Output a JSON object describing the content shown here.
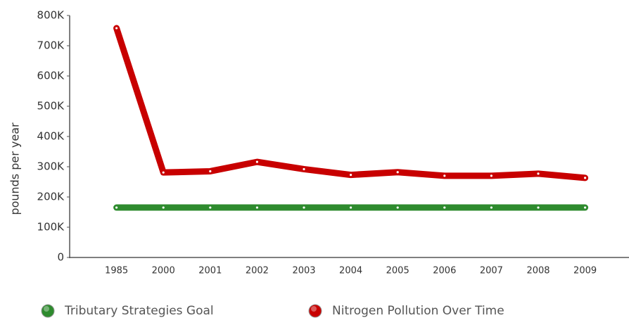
{
  "chart_data": {
    "type": "line",
    "y_label": "pounds per year",
    "categories": [
      "1985",
      "2000",
      "2001",
      "2002",
      "2003",
      "2004",
      "2005",
      "2006",
      "2007",
      "2008",
      "2009"
    ],
    "series": [
      {
        "name": "Tributary Strategies Goal",
        "color": "#2e8b2e",
        "values": [
          165000,
          165000,
          165000,
          165000,
          165000,
          165000,
          165000,
          165000,
          165000,
          165000,
          165000
        ]
      },
      {
        "name": "Nitrogen Pollution Over Time",
        "color": "#c80000",
        "values": [
          758000,
          281000,
          285000,
          316000,
          292000,
          273000,
          282000,
          270000,
          270000,
          277000,
          263000
        ]
      }
    ],
    "ylim": [
      0,
      800000
    ],
    "yticks": [
      0,
      {
        "value": 100000,
        "label": "100K"
      },
      {
        "value": 200000,
        "label": "200K"
      },
      {
        "value": 300000,
        "label": "300K"
      },
      {
        "value": 400000,
        "label": "400K"
      },
      {
        "value": 500000,
        "label": "500K"
      },
      {
        "value": 600000,
        "label": "600K"
      },
      {
        "value": 700000,
        "label": "700K"
      },
      {
        "value": 800000,
        "label": "800K"
      }
    ],
    "grid": false,
    "legend": "bottom"
  }
}
